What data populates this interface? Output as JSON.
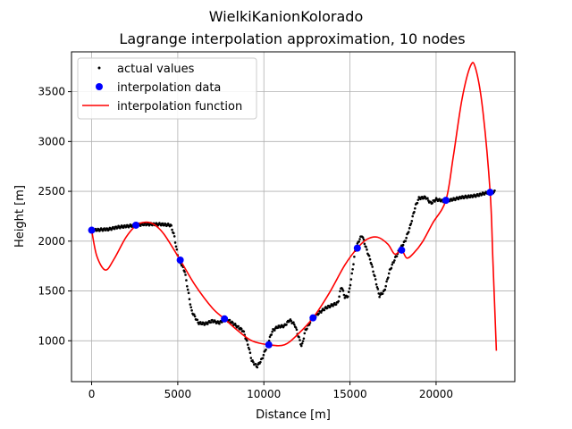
{
  "chart_data": {
    "type": "line",
    "suptitle": "WielkiKanionKolorado",
    "title": "Lagrange interpolation approximation, 10 nodes",
    "xlabel": "Distance [m]",
    "ylabel": "Height [m]",
    "xlim": [
      -1170,
      24570
    ],
    "ylim": [
      590,
      3900
    ],
    "xticks": [
      0,
      5000,
      10000,
      15000,
      20000
    ],
    "yticks": [
      1000,
      1500,
      2000,
      2500,
      3000,
      3500
    ],
    "grid": true,
    "legend_position": "upper-left",
    "colors": {
      "actual": "#000000",
      "nodes": "#0000ff",
      "function": "#ff0000"
    },
    "series": [
      {
        "name": "actual values",
        "style": "dots",
        "profile": [
          [
            0,
            2110
          ],
          [
            1000,
            2120
          ],
          [
            1500,
            2140
          ],
          [
            2600,
            2160
          ],
          [
            3000,
            2170
          ],
          [
            4000,
            2170
          ],
          [
            4600,
            2160
          ],
          [
            4800,
            2050
          ],
          [
            5000,
            1850
          ],
          [
            5100,
            1810
          ],
          [
            5400,
            1700
          ],
          [
            5600,
            1500
          ],
          [
            5800,
            1300
          ],
          [
            6200,
            1180
          ],
          [
            6600,
            1170
          ],
          [
            7000,
            1200
          ],
          [
            7400,
            1180
          ],
          [
            7700,
            1210
          ],
          [
            8000,
            1200
          ],
          [
            8400,
            1150
          ],
          [
            8800,
            1100
          ],
          [
            9100,
            950
          ],
          [
            9300,
            800
          ],
          [
            9600,
            740
          ],
          [
            9900,
            820
          ],
          [
            10200,
            960
          ],
          [
            10500,
            1100
          ],
          [
            10800,
            1140
          ],
          [
            11200,
            1150
          ],
          [
            11500,
            1210
          ],
          [
            11800,
            1160
          ],
          [
            12000,
            1050
          ],
          [
            12200,
            940
          ],
          [
            12400,
            1100
          ],
          [
            12800,
            1220
          ],
          [
            13200,
            1280
          ],
          [
            13600,
            1330
          ],
          [
            14000,
            1360
          ],
          [
            14300,
            1380
          ],
          [
            14500,
            1550
          ],
          [
            14700,
            1440
          ],
          [
            14900,
            1450
          ],
          [
            15100,
            1650
          ],
          [
            15300,
            1900
          ],
          [
            15500,
            2000
          ],
          [
            15700,
            2060
          ],
          [
            15900,
            1950
          ],
          [
            16200,
            1800
          ],
          [
            16500,
            1600
          ],
          [
            16700,
            1450
          ],
          [
            17000,
            1500
          ],
          [
            17300,
            1700
          ],
          [
            17600,
            1820
          ],
          [
            17900,
            1920
          ],
          [
            18200,
            2000
          ],
          [
            18500,
            2150
          ],
          [
            18800,
            2350
          ],
          [
            19000,
            2430
          ],
          [
            19400,
            2440
          ],
          [
            19700,
            2380
          ],
          [
            20000,
            2420
          ],
          [
            20500,
            2400
          ],
          [
            21000,
            2420
          ],
          [
            21500,
            2440
          ],
          [
            22000,
            2450
          ],
          [
            22400,
            2460
          ],
          [
            22800,
            2480
          ],
          [
            23100,
            2490
          ],
          [
            23400,
            2495
          ]
        ],
        "sample_count": 512
      },
      {
        "name": "interpolation data",
        "style": "markers",
        "x": [
          0,
          2571,
          5142,
          7713,
          10284,
          12855,
          15426,
          17997,
          20568,
          23139
        ],
        "y": [
          2110,
          2160,
          1810,
          1220,
          960,
          1230,
          1930,
          1910,
          2410,
          2490
        ]
      },
      {
        "name": "interpolation function",
        "style": "line",
        "x": [
          0,
          300,
          800,
          1300,
          2000,
          2600,
          3100,
          3600,
          4200,
          5142,
          6000,
          7000,
          7713,
          8500,
          9300,
          10284,
          11200,
          12000,
          12855,
          13800,
          14700,
          15426,
          16000,
          16600,
          17200,
          17600,
          17997,
          18300,
          18700,
          19200,
          19800,
          20568,
          21000,
          21500,
          22000,
          22300,
          22700,
          23139,
          23300,
          23500
        ],
        "y": [
          2110,
          1850,
          1710,
          1820,
          2040,
          2160,
          2190,
          2170,
          2070,
          1810,
          1560,
          1330,
          1220,
          1100,
          1000,
          960,
          960,
          1070,
          1230,
          1480,
          1760,
          1930,
          2020,
          2040,
          1970,
          1870,
          1910,
          1830,
          1880,
          1990,
          2180,
          2410,
          2850,
          3420,
          3760,
          3730,
          3330,
          2490,
          1800,
          900
        ]
      }
    ]
  }
}
